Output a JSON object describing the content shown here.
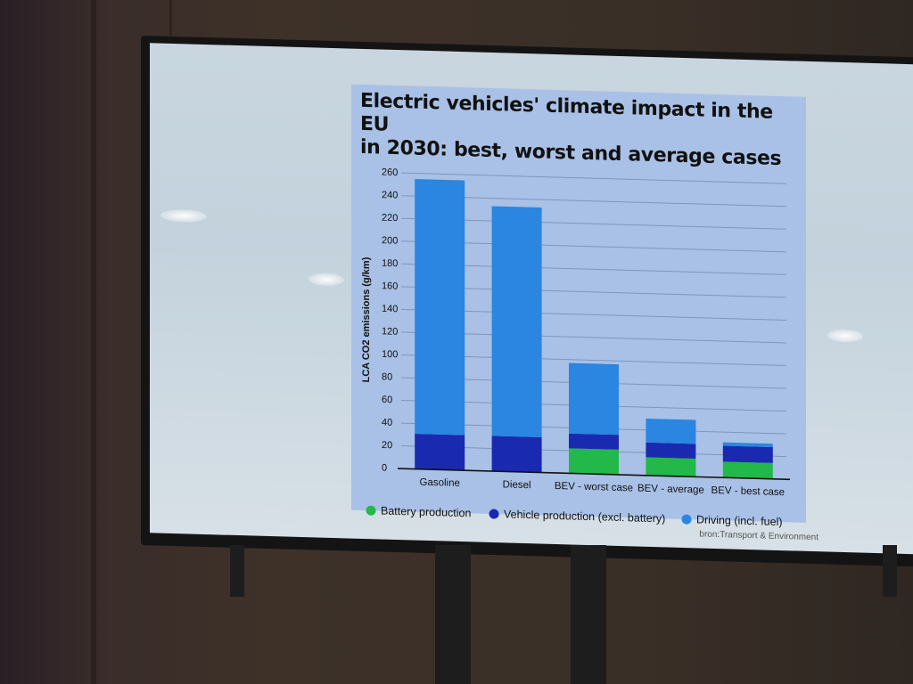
{
  "slide": {
    "title_line1": "Electric vehicles' climate impact in the EU",
    "title_line2": "in 2030: best, worst and average cases",
    "credit": "bron:Transport & Environment"
  },
  "colors": {
    "battery": "#22b84a",
    "vehicle": "#1a2ab0",
    "driving": "#2a86e0",
    "panel": "#a9c1e6"
  },
  "chart_data": {
    "type": "bar",
    "stacked": true,
    "ylabel": "LCA CO2 emissions (g/km)",
    "ylim": [
      0,
      260
    ],
    "yticks": [
      "0",
      "20",
      "40",
      "60",
      "80",
      "100",
      "120",
      "140",
      "160",
      "180",
      "200",
      "220",
      "240",
      "260"
    ],
    "grid": true,
    "legend_position": "bottom",
    "categories": [
      "Gasoline",
      "Diesel",
      "BEV - worst case",
      "BEV - average",
      "BEV - best case"
    ],
    "series": [
      {
        "name": "Battery production",
        "values": [
          0,
          0,
          22,
          16,
          14
        ]
      },
      {
        "name": "Vehicle production (excl. battery)",
        "values": [
          31,
          31,
          13,
          13,
          14
        ]
      },
      {
        "name": "Driving (incl. fuel)",
        "values": [
          224,
          202,
          62,
          21,
          3
        ]
      }
    ]
  }
}
